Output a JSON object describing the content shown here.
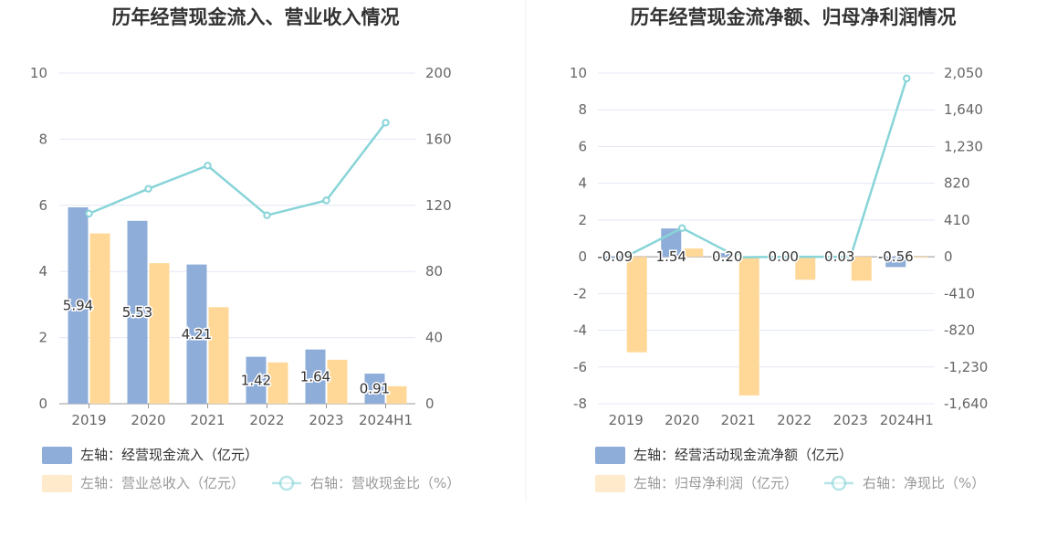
{
  "chart_data": [
    {
      "type": "bar",
      "title": "历年经营现金流入、营业收入情况",
      "categories": [
        "2019",
        "2020",
        "2021",
        "2022",
        "2023",
        "2024H1"
      ],
      "left_axis": {
        "ticks": [
          "0",
          "2",
          "4",
          "6",
          "8",
          "10"
        ],
        "ylim": [
          0,
          10
        ]
      },
      "right_axis": {
        "ticks": [
          "0",
          "40",
          "80",
          "120",
          "160",
          "200"
        ],
        "ylim": [
          0,
          200
        ]
      },
      "series": [
        {
          "name": "左轴：经营现金流入（亿元）",
          "kind": "bar",
          "axis": "left",
          "color": "#8eadd9",
          "values": [
            5.94,
            5.53,
            4.21,
            1.42,
            1.64,
            0.91
          ],
          "labels": [
            "5.94",
            "5.53",
            "4.21",
            "1.42",
            "1.64",
            "0.91"
          ]
        },
        {
          "name": "左轴：营业总收入（亿元）",
          "kind": "bar",
          "axis": "left",
          "color": "#ffd898",
          "values": [
            5.15,
            4.25,
            2.92,
            1.25,
            1.33,
            0.53
          ]
        },
        {
          "name": "右轴：营收现金比（%）",
          "kind": "line",
          "axis": "right",
          "color": "#88d4d8",
          "values": [
            115,
            130,
            144,
            114,
            123,
            170
          ]
        }
      ],
      "grid": true,
      "legend_position": "bottom"
    },
    {
      "type": "bar",
      "title": "历年经营现金流净额、归母净利润情况",
      "categories": [
        "2019",
        "2020",
        "2021",
        "2022",
        "2023",
        "2024H1"
      ],
      "left_axis": {
        "ticks": [
          "-8",
          "-6",
          "-4",
          "-2",
          "0",
          "2",
          "4",
          "6",
          "8",
          "10"
        ],
        "ylim": [
          -8,
          10
        ]
      },
      "right_axis": {
        "ticks": [
          "-1,640",
          "-1,230",
          "-820",
          "-410",
          "0",
          "410",
          "820",
          "1,230",
          "1,640",
          "2,050"
        ],
        "ylim": [
          -1640,
          2050
        ]
      },
      "series": [
        {
          "name": "左轴：经营活动现金流净额（亿元）",
          "kind": "bar",
          "axis": "left",
          "color": "#8eadd9",
          "values": [
            -0.09,
            1.54,
            0.2,
            0.0,
            0.03,
            -0.56
          ],
          "labels": [
            "-0.09",
            "1.54",
            "0.20",
            "0.00",
            "0.03",
            "-0.56"
          ]
        },
        {
          "name": "左轴：归母净利润（亿元）",
          "kind": "bar",
          "axis": "left",
          "color": "#ffd898",
          "values": [
            -5.2,
            0.45,
            -7.55,
            -1.25,
            -1.3,
            -0.05
          ]
        },
        {
          "name": "右轴：净现比（%）",
          "kind": "line",
          "axis": "right",
          "color": "#88d4d8",
          "values": [
            2,
            320,
            -5,
            0,
            -2,
            1990
          ]
        }
      ],
      "grid": true,
      "legend_position": "bottom"
    }
  ],
  "colors": {
    "bar1": "#8eadd9",
    "bar2": "#ffd898",
    "line": "#88d4d8",
    "grid": "#e3e8f5",
    "axis": "#999999",
    "divider": "#eeeeee"
  }
}
